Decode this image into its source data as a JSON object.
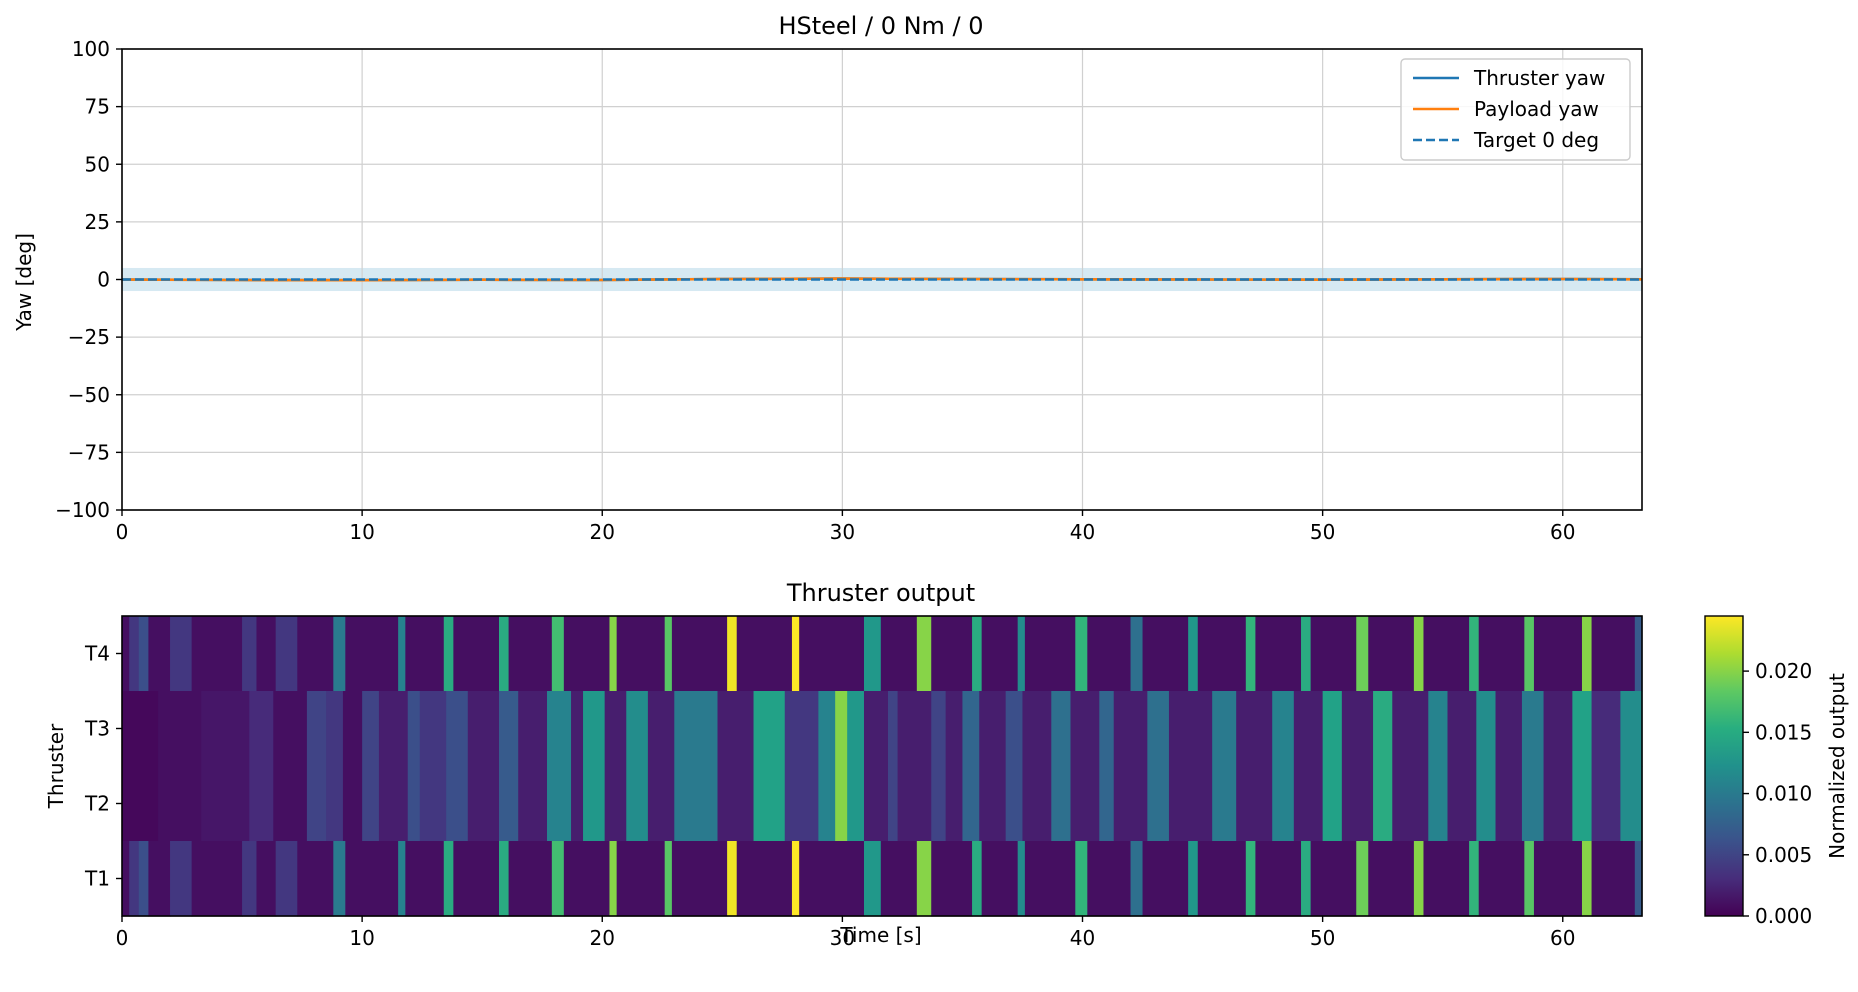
{
  "chart_data": [
    {
      "type": "line",
      "title": "HSteel / 0 Nm / 0",
      "xlabel": "",
      "ylabel": "Yaw [deg]",
      "xlim": [
        0,
        63.3
      ],
      "ylim": [
        -100,
        100
      ],
      "xticks": [
        0,
        10,
        20,
        30,
        40,
        50,
        60
      ],
      "yticks": [
        -100,
        -75,
        -50,
        -25,
        0,
        25,
        50,
        75,
        100
      ],
      "ytick_labels": [
        "−100",
        "−75",
        "−50",
        "−25",
        "0",
        "25",
        "50",
        "75",
        "100"
      ],
      "grid": true,
      "legend_position": "top-right",
      "tolerance_band": {
        "lower": -5,
        "upper": 5,
        "color": "#d6e9f2"
      },
      "series": [
        {
          "name": "Thruster yaw",
          "style": "solid",
          "color": "#1f77b4",
          "x": [
            0,
            5,
            10,
            15,
            20,
            25,
            30,
            35,
            40,
            45,
            50,
            55,
            60,
            63.3
          ],
          "y": [
            0.0,
            -0.2,
            -0.3,
            -0.1,
            -0.2,
            0.2,
            0.4,
            0.2,
            0.1,
            0.0,
            -0.1,
            0.1,
            0.2,
            0.1
          ]
        },
        {
          "name": "Payload yaw",
          "style": "solid",
          "color": "#ff7f0e",
          "x": [
            0,
            5,
            10,
            15,
            20,
            25,
            30,
            35,
            40,
            45,
            50,
            55,
            60,
            63.3
          ],
          "y": [
            0.0,
            -0.2,
            -0.3,
            -0.1,
            -0.2,
            0.2,
            0.4,
            0.2,
            0.1,
            0.0,
            -0.1,
            0.1,
            0.2,
            0.1
          ]
        },
        {
          "name": "Target 0 deg",
          "style": "dashed",
          "color": "#1f77b4",
          "x": [
            0,
            63.3
          ],
          "y": [
            0,
            0
          ]
        }
      ]
    },
    {
      "type": "heatmap",
      "title": "Thruster output",
      "xlabel": "Time [s]",
      "ylabel": "Thruster",
      "xlim": [
        0,
        63.3
      ],
      "xticks": [
        0,
        10,
        20,
        30,
        40,
        50,
        60
      ],
      "rows": [
        "T4",
        "T3",
        "T2",
        "T1"
      ],
      "colormap": "viridis",
      "colorbar": {
        "label": "Normalized output",
        "range": [
          0,
          0.0245
        ],
        "ticks": [
          0.0,
          0.005,
          0.01,
          0.015,
          0.02
        ],
        "tick_labels": [
          "0.000",
          "0.005",
          "0.010",
          "0.015",
          "0.020"
        ]
      },
      "row_groups": {
        "T4": "outer",
        "T1": "outer",
        "T3": "inner",
        "T2": "inner"
      },
      "outer_segments": [
        [
          0,
          0.3,
          0.001
        ],
        [
          0.3,
          0.7,
          0.004
        ],
        [
          0.7,
          1.1,
          0.006
        ],
        [
          1.1,
          2.0,
          0.001
        ],
        [
          2.0,
          2.9,
          0.004
        ],
        [
          2.9,
          5.0,
          0.001
        ],
        [
          5.0,
          5.6,
          0.004
        ],
        [
          5.6,
          6.4,
          0.001
        ],
        [
          6.4,
          7.3,
          0.004
        ],
        [
          7.3,
          8.8,
          0.001
        ],
        [
          8.8,
          9.3,
          0.01
        ],
        [
          9.3,
          11.5,
          0.001
        ],
        [
          11.5,
          11.8,
          0.011
        ],
        [
          11.8,
          13.4,
          0.001
        ],
        [
          13.4,
          13.8,
          0.015
        ],
        [
          13.8,
          15.7,
          0.001
        ],
        [
          15.7,
          16.1,
          0.015
        ],
        [
          16.1,
          17.9,
          0.001
        ],
        [
          17.9,
          18.4,
          0.017
        ],
        [
          18.4,
          20.3,
          0.001
        ],
        [
          20.3,
          20.6,
          0.02
        ],
        [
          20.6,
          22.6,
          0.001
        ],
        [
          22.6,
          22.9,
          0.018
        ],
        [
          22.9,
          25.2,
          0.001
        ],
        [
          25.2,
          25.6,
          0.024
        ],
        [
          25.6,
          27.9,
          0.001
        ],
        [
          27.9,
          28.2,
          0.0245
        ],
        [
          28.2,
          30.9,
          0.001
        ],
        [
          30.9,
          31.6,
          0.013
        ],
        [
          31.6,
          33.1,
          0.001
        ],
        [
          33.1,
          33.7,
          0.02
        ],
        [
          33.7,
          35.4,
          0.001
        ],
        [
          35.4,
          35.8,
          0.015
        ],
        [
          35.8,
          37.3,
          0.001
        ],
        [
          37.3,
          37.6,
          0.012
        ],
        [
          37.6,
          39.7,
          0.001
        ],
        [
          39.7,
          40.2,
          0.016
        ],
        [
          40.2,
          42.0,
          0.001
        ],
        [
          42.0,
          42.5,
          0.009
        ],
        [
          42.5,
          44.4,
          0.001
        ],
        [
          44.4,
          44.8,
          0.013
        ],
        [
          44.8,
          46.8,
          0.001
        ],
        [
          46.8,
          47.2,
          0.016
        ],
        [
          47.2,
          49.1,
          0.001
        ],
        [
          49.1,
          49.5,
          0.015
        ],
        [
          49.5,
          51.4,
          0.001
        ],
        [
          51.4,
          51.9,
          0.019
        ],
        [
          51.9,
          53.8,
          0.001
        ],
        [
          53.8,
          54.2,
          0.02
        ],
        [
          54.2,
          56.1,
          0.001
        ],
        [
          56.1,
          56.5,
          0.016
        ],
        [
          56.5,
          58.4,
          0.001
        ],
        [
          58.4,
          58.8,
          0.018
        ],
        [
          58.8,
          60.8,
          0.001
        ],
        [
          60.8,
          61.2,
          0.02
        ],
        [
          61.2,
          63.0,
          0.001
        ],
        [
          63.0,
          63.3,
          0.007
        ]
      ],
      "inner_segments": [
        [
          0,
          1.5,
          0.0005
        ],
        [
          1.5,
          3.3,
          0.001
        ],
        [
          3.3,
          5.3,
          0.0015
        ],
        [
          5.3,
          6.3,
          0.003
        ],
        [
          6.3,
          7.7,
          0.001
        ],
        [
          7.7,
          8.5,
          0.005
        ],
        [
          8.5,
          9.2,
          0.004
        ],
        [
          9.2,
          10.0,
          0.001
        ],
        [
          10.0,
          10.7,
          0.005
        ],
        [
          10.7,
          11.9,
          0.002
        ],
        [
          11.9,
          12.4,
          0.006
        ],
        [
          12.4,
          13.5,
          0.004
        ],
        [
          13.5,
          14.4,
          0.006
        ],
        [
          14.4,
          15.7,
          0.002
        ],
        [
          15.7,
          16.5,
          0.007
        ],
        [
          16.5,
          17.7,
          0.002
        ],
        [
          17.7,
          18.7,
          0.011
        ],
        [
          18.7,
          19.2,
          0.002
        ],
        [
          19.2,
          20.1,
          0.013
        ],
        [
          20.1,
          21.0,
          0.002
        ],
        [
          21.0,
          21.9,
          0.012
        ],
        [
          21.9,
          23.0,
          0.002
        ],
        [
          23.0,
          24.8,
          0.01
        ],
        [
          24.8,
          26.3,
          0.002
        ],
        [
          26.3,
          27.6,
          0.014
        ],
        [
          27.6,
          29.0,
          0.004
        ],
        [
          29.0,
          29.7,
          0.011
        ],
        [
          29.7,
          30.2,
          0.02
        ],
        [
          30.2,
          30.9,
          0.013
        ],
        [
          30.9,
          31.9,
          0.002
        ],
        [
          31.9,
          32.3,
          0.005
        ],
        [
          32.3,
          33.7,
          0.002
        ],
        [
          33.7,
          34.3,
          0.005
        ],
        [
          34.3,
          35.0,
          0.002
        ],
        [
          35.0,
          35.7,
          0.008
        ],
        [
          35.7,
          36.8,
          0.002
        ],
        [
          36.8,
          37.5,
          0.006
        ],
        [
          37.5,
          38.7,
          0.002
        ],
        [
          38.7,
          39.5,
          0.009
        ],
        [
          39.5,
          40.7,
          0.002
        ],
        [
          40.7,
          41.3,
          0.008
        ],
        [
          41.3,
          42.7,
          0.002
        ],
        [
          42.7,
          43.6,
          0.009
        ],
        [
          43.6,
          45.4,
          0.002
        ],
        [
          45.4,
          46.4,
          0.01
        ],
        [
          46.4,
          47.9,
          0.002
        ],
        [
          47.9,
          48.8,
          0.011
        ],
        [
          48.8,
          50.0,
          0.002
        ],
        [
          50.0,
          50.8,
          0.014
        ],
        [
          50.8,
          52.1,
          0.002
        ],
        [
          52.1,
          52.9,
          0.015
        ],
        [
          52.9,
          54.4,
          0.002
        ],
        [
          54.4,
          55.2,
          0.011
        ],
        [
          55.2,
          56.4,
          0.002
        ],
        [
          56.4,
          57.2,
          0.012
        ],
        [
          57.2,
          58.3,
          0.002
        ],
        [
          58.3,
          59.2,
          0.01
        ],
        [
          59.2,
          60.4,
          0.002
        ],
        [
          60.4,
          61.2,
          0.014
        ],
        [
          61.2,
          62.4,
          0.003
        ],
        [
          62.4,
          63.3,
          0.012
        ]
      ]
    }
  ]
}
